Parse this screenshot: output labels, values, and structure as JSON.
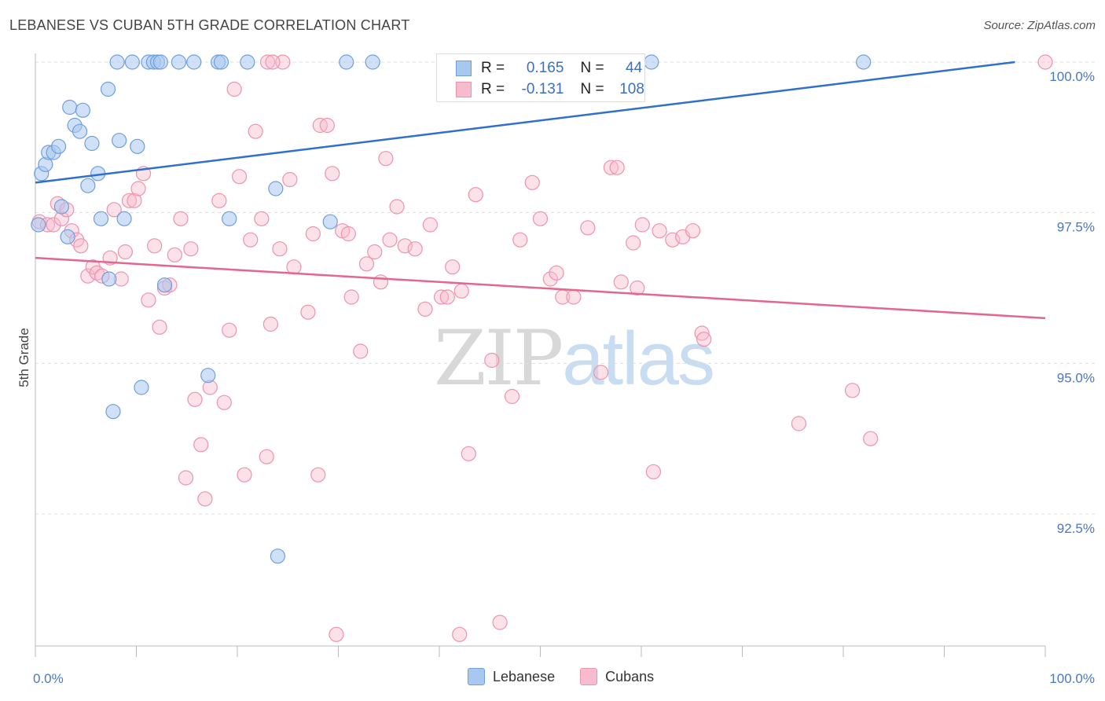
{
  "header": {
    "title": "LEBANESE VS CUBAN 5TH GRADE CORRELATION CHART",
    "source": "Source: ZipAtlas.com"
  },
  "watermark": {
    "zip": "ZIP",
    "atlas": "atlas"
  },
  "legend": {
    "lebanese": {
      "r_label": "R =",
      "r_value": "0.165",
      "n_label": "N =",
      "n_value": "44"
    },
    "cubans": {
      "r_label": "R =",
      "r_value": "-0.131",
      "n_label": "N =",
      "n_value": "108"
    }
  },
  "bottom_legend": {
    "lebanese": "Lebanese",
    "cubans": "Cubans"
  },
  "colors": {
    "lebanese_fill": "#a9c8f0",
    "lebanese_stroke": "#6e9fdc",
    "lebanese_line": "#2f6fcf",
    "cubans_fill": "#f6bccd",
    "cubans_stroke": "#ec93b0",
    "cubans_line": "#e4668f",
    "tick_label": "#4a78c2",
    "grid": "#dddddd"
  },
  "chart_data": {
    "type": "scatter",
    "title": "LEBANESE VS CUBAN 5TH GRADE CORRELATION CHART",
    "xlabel": "",
    "ylabel": "5th Grade",
    "xlim": [
      0,
      100
    ],
    "ylim": [
      90.0,
      100.5
    ],
    "x_tick_labels": [
      "0.0%",
      "100.0%"
    ],
    "y_ticks": [
      92.5,
      95.0,
      97.5,
      100.0
    ],
    "y_tick_labels": [
      "92.5%",
      "95.0%",
      "97.5%",
      "100.0%"
    ],
    "grid": "horizontal dashed",
    "series": [
      {
        "name": "Lebanese",
        "r": 0.165,
        "n": 44,
        "trend": {
          "x": [
            0,
            97
          ],
          "y": [
            98.0,
            100.0
          ]
        },
        "points": [
          [
            0.3,
            97.3
          ],
          [
            0.6,
            98.15
          ],
          [
            1.0,
            98.3
          ],
          [
            1.3,
            98.5
          ],
          [
            1.8,
            98.5
          ],
          [
            2.3,
            98.6
          ],
          [
            2.6,
            97.6
          ],
          [
            3.2,
            97.1
          ],
          [
            3.4,
            99.25
          ],
          [
            3.9,
            98.95
          ],
          [
            4.4,
            98.85
          ],
          [
            4.7,
            99.2
          ],
          [
            5.6,
            98.65
          ],
          [
            6.2,
            98.15
          ],
          [
            5.2,
            97.95
          ],
          [
            6.5,
            97.4
          ],
          [
            7.2,
            99.55
          ],
          [
            7.3,
            96.4
          ],
          [
            7.7,
            94.2
          ],
          [
            8.3,
            98.7
          ],
          [
            8.8,
            97.4
          ],
          [
            8.1,
            100.0
          ],
          [
            9.6,
            100.0
          ],
          [
            10.1,
            98.6
          ],
          [
            10.5,
            94.6
          ],
          [
            11.2,
            100.0
          ],
          [
            11.7,
            100.0
          ],
          [
            12.1,
            100.0
          ],
          [
            12.4,
            100.0
          ],
          [
            12.8,
            96.3
          ],
          [
            14.2,
            100.0
          ],
          [
            15.7,
            100.0
          ],
          [
            17.1,
            94.8
          ],
          [
            18.1,
            100.0
          ],
          [
            18.4,
            100.0
          ],
          [
            19.2,
            97.4
          ],
          [
            21.0,
            100.0
          ],
          [
            23.8,
            97.9
          ],
          [
            24.0,
            91.8
          ],
          [
            29.2,
            97.35
          ],
          [
            30.8,
            100.0
          ],
          [
            33.4,
            100.0
          ],
          [
            61.0,
            100.0
          ],
          [
            82.0,
            100.0
          ]
        ]
      },
      {
        "name": "Cubans",
        "r": -0.131,
        "n": 108,
        "trend": {
          "x": [
            0,
            100
          ],
          "y": [
            96.75,
            95.75
          ]
        },
        "points": [
          [
            0.4,
            97.35
          ],
          [
            1.2,
            97.3
          ],
          [
            1.8,
            97.3
          ],
          [
            2.2,
            97.65
          ],
          [
            2.6,
            97.4
          ],
          [
            3.1,
            97.55
          ],
          [
            3.6,
            97.2
          ],
          [
            4.1,
            97.05
          ],
          [
            4.5,
            96.95
          ],
          [
            5.2,
            96.45
          ],
          [
            5.7,
            96.6
          ],
          [
            6.1,
            96.5
          ],
          [
            6.6,
            96.45
          ],
          [
            7.4,
            96.75
          ],
          [
            7.8,
            97.55
          ],
          [
            8.5,
            96.4
          ],
          [
            8.9,
            96.85
          ],
          [
            9.3,
            97.7
          ],
          [
            9.8,
            97.7
          ],
          [
            10.2,
            97.9
          ],
          [
            10.7,
            98.15
          ],
          [
            11.2,
            96.05
          ],
          [
            11.8,
            96.95
          ],
          [
            12.3,
            95.6
          ],
          [
            12.8,
            96.25
          ],
          [
            13.3,
            96.3
          ],
          [
            13.8,
            96.8
          ],
          [
            14.4,
            97.4
          ],
          [
            14.9,
            93.1
          ],
          [
            15.4,
            96.9
          ],
          [
            15.8,
            94.4
          ],
          [
            16.4,
            93.65
          ],
          [
            16.8,
            92.75
          ],
          [
            17.3,
            94.6
          ],
          [
            18.2,
            97.7
          ],
          [
            18.7,
            94.35
          ],
          [
            19.2,
            95.55
          ],
          [
            19.7,
            99.55
          ],
          [
            20.2,
            98.1
          ],
          [
            20.7,
            93.15
          ],
          [
            21.3,
            97.05
          ],
          [
            21.8,
            98.85
          ],
          [
            22.4,
            97.4
          ],
          [
            22.9,
            93.45
          ],
          [
            23.3,
            95.65
          ],
          [
            24.2,
            96.9
          ],
          [
            23.0,
            100.0
          ],
          [
            24.5,
            100.0
          ],
          [
            25.2,
            98.05
          ],
          [
            25.6,
            96.6
          ],
          [
            27.0,
            95.85
          ],
          [
            27.5,
            97.15
          ],
          [
            28.0,
            93.15
          ],
          [
            28.2,
            98.95
          ],
          [
            28.9,
            98.95
          ],
          [
            29.4,
            98.15
          ],
          [
            29.8,
            90.5
          ],
          [
            30.4,
            97.2
          ],
          [
            31.3,
            96.1
          ],
          [
            32.2,
            95.2
          ],
          [
            32.8,
            96.65
          ],
          [
            33.6,
            96.85
          ],
          [
            34.2,
            96.35
          ],
          [
            34.7,
            98.4
          ],
          [
            35.1,
            97.05
          ],
          [
            35.8,
            97.6
          ],
          [
            36.6,
            96.95
          ],
          [
            37.6,
            96.9
          ],
          [
            38.6,
            95.9
          ],
          [
            39.1,
            97.3
          ],
          [
            40.2,
            96.1
          ],
          [
            40.8,
            96.1
          ],
          [
            41.3,
            96.6
          ],
          [
            42.0,
            90.5
          ],
          [
            42.2,
            96.2
          ],
          [
            42.9,
            93.5
          ],
          [
            43.6,
            97.8
          ],
          [
            45.2,
            95.05
          ],
          [
            46.0,
            90.7
          ],
          [
            47.2,
            94.45
          ],
          [
            48.0,
            97.05
          ],
          [
            49.2,
            98.0
          ],
          [
            50.0,
            97.4
          ],
          [
            51.0,
            96.4
          ],
          [
            51.6,
            96.5
          ],
          [
            52.2,
            96.1
          ],
          [
            53.3,
            96.1
          ],
          [
            54.7,
            97.25
          ],
          [
            56.0,
            94.85
          ],
          [
            57.0,
            98.25
          ],
          [
            57.6,
            98.25
          ],
          [
            58.0,
            96.35
          ],
          [
            59.2,
            97.0
          ],
          [
            59.6,
            96.25
          ],
          [
            60.1,
            97.3
          ],
          [
            61.2,
            93.2
          ],
          [
            63.1,
            97.05
          ],
          [
            64.1,
            97.1
          ],
          [
            65.1,
            97.2
          ],
          [
            66.0,
            95.5
          ],
          [
            66.2,
            95.4
          ],
          [
            75.6,
            94.0
          ],
          [
            80.9,
            94.55
          ],
          [
            82.7,
            93.75
          ],
          [
            100.0,
            100.0
          ],
          [
            23.5,
            100.0
          ],
          [
            61.8,
            97.2
          ],
          [
            31.0,
            97.15
          ]
        ]
      }
    ]
  }
}
